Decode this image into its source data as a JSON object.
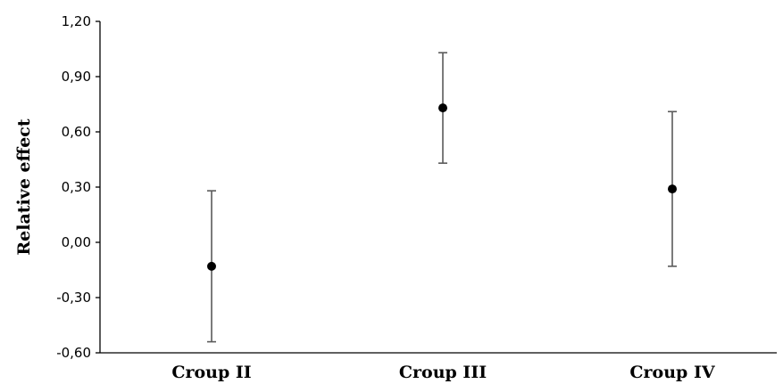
{
  "chart_data": {
    "type": "scatter",
    "title": "",
    "xlabel": "",
    "ylabel": "Relative effect",
    "ylim": [
      -0.6,
      1.2
    ],
    "yticks": [
      {
        "value": 1.2,
        "label": "1,20"
      },
      {
        "value": 0.9,
        "label": "0,90"
      },
      {
        "value": 0.6,
        "label": "0,60"
      },
      {
        "value": 0.3,
        "label": "0,30"
      },
      {
        "value": 0.0,
        "label": "0,00"
      },
      {
        "value": -0.3,
        "label": "-0,30"
      },
      {
        "value": -0.6,
        "label": "-0,60"
      }
    ],
    "categories": [
      "Croup II",
      "Croup III",
      "Croup IV"
    ],
    "points": [
      {
        "category": "Croup II",
        "value": -0.13,
        "lower": -0.54,
        "upper": 0.28
      },
      {
        "category": "Croup III",
        "value": 0.73,
        "lower": 0.43,
        "upper": 1.03
      },
      {
        "category": "Croup IV",
        "value": 0.29,
        "lower": -0.13,
        "upper": 0.71
      }
    ],
    "grid": false,
    "legend": "none",
    "colors": {
      "point": "#000000",
      "error_bar": "#5a5a5a",
      "axis": "#000000"
    }
  }
}
